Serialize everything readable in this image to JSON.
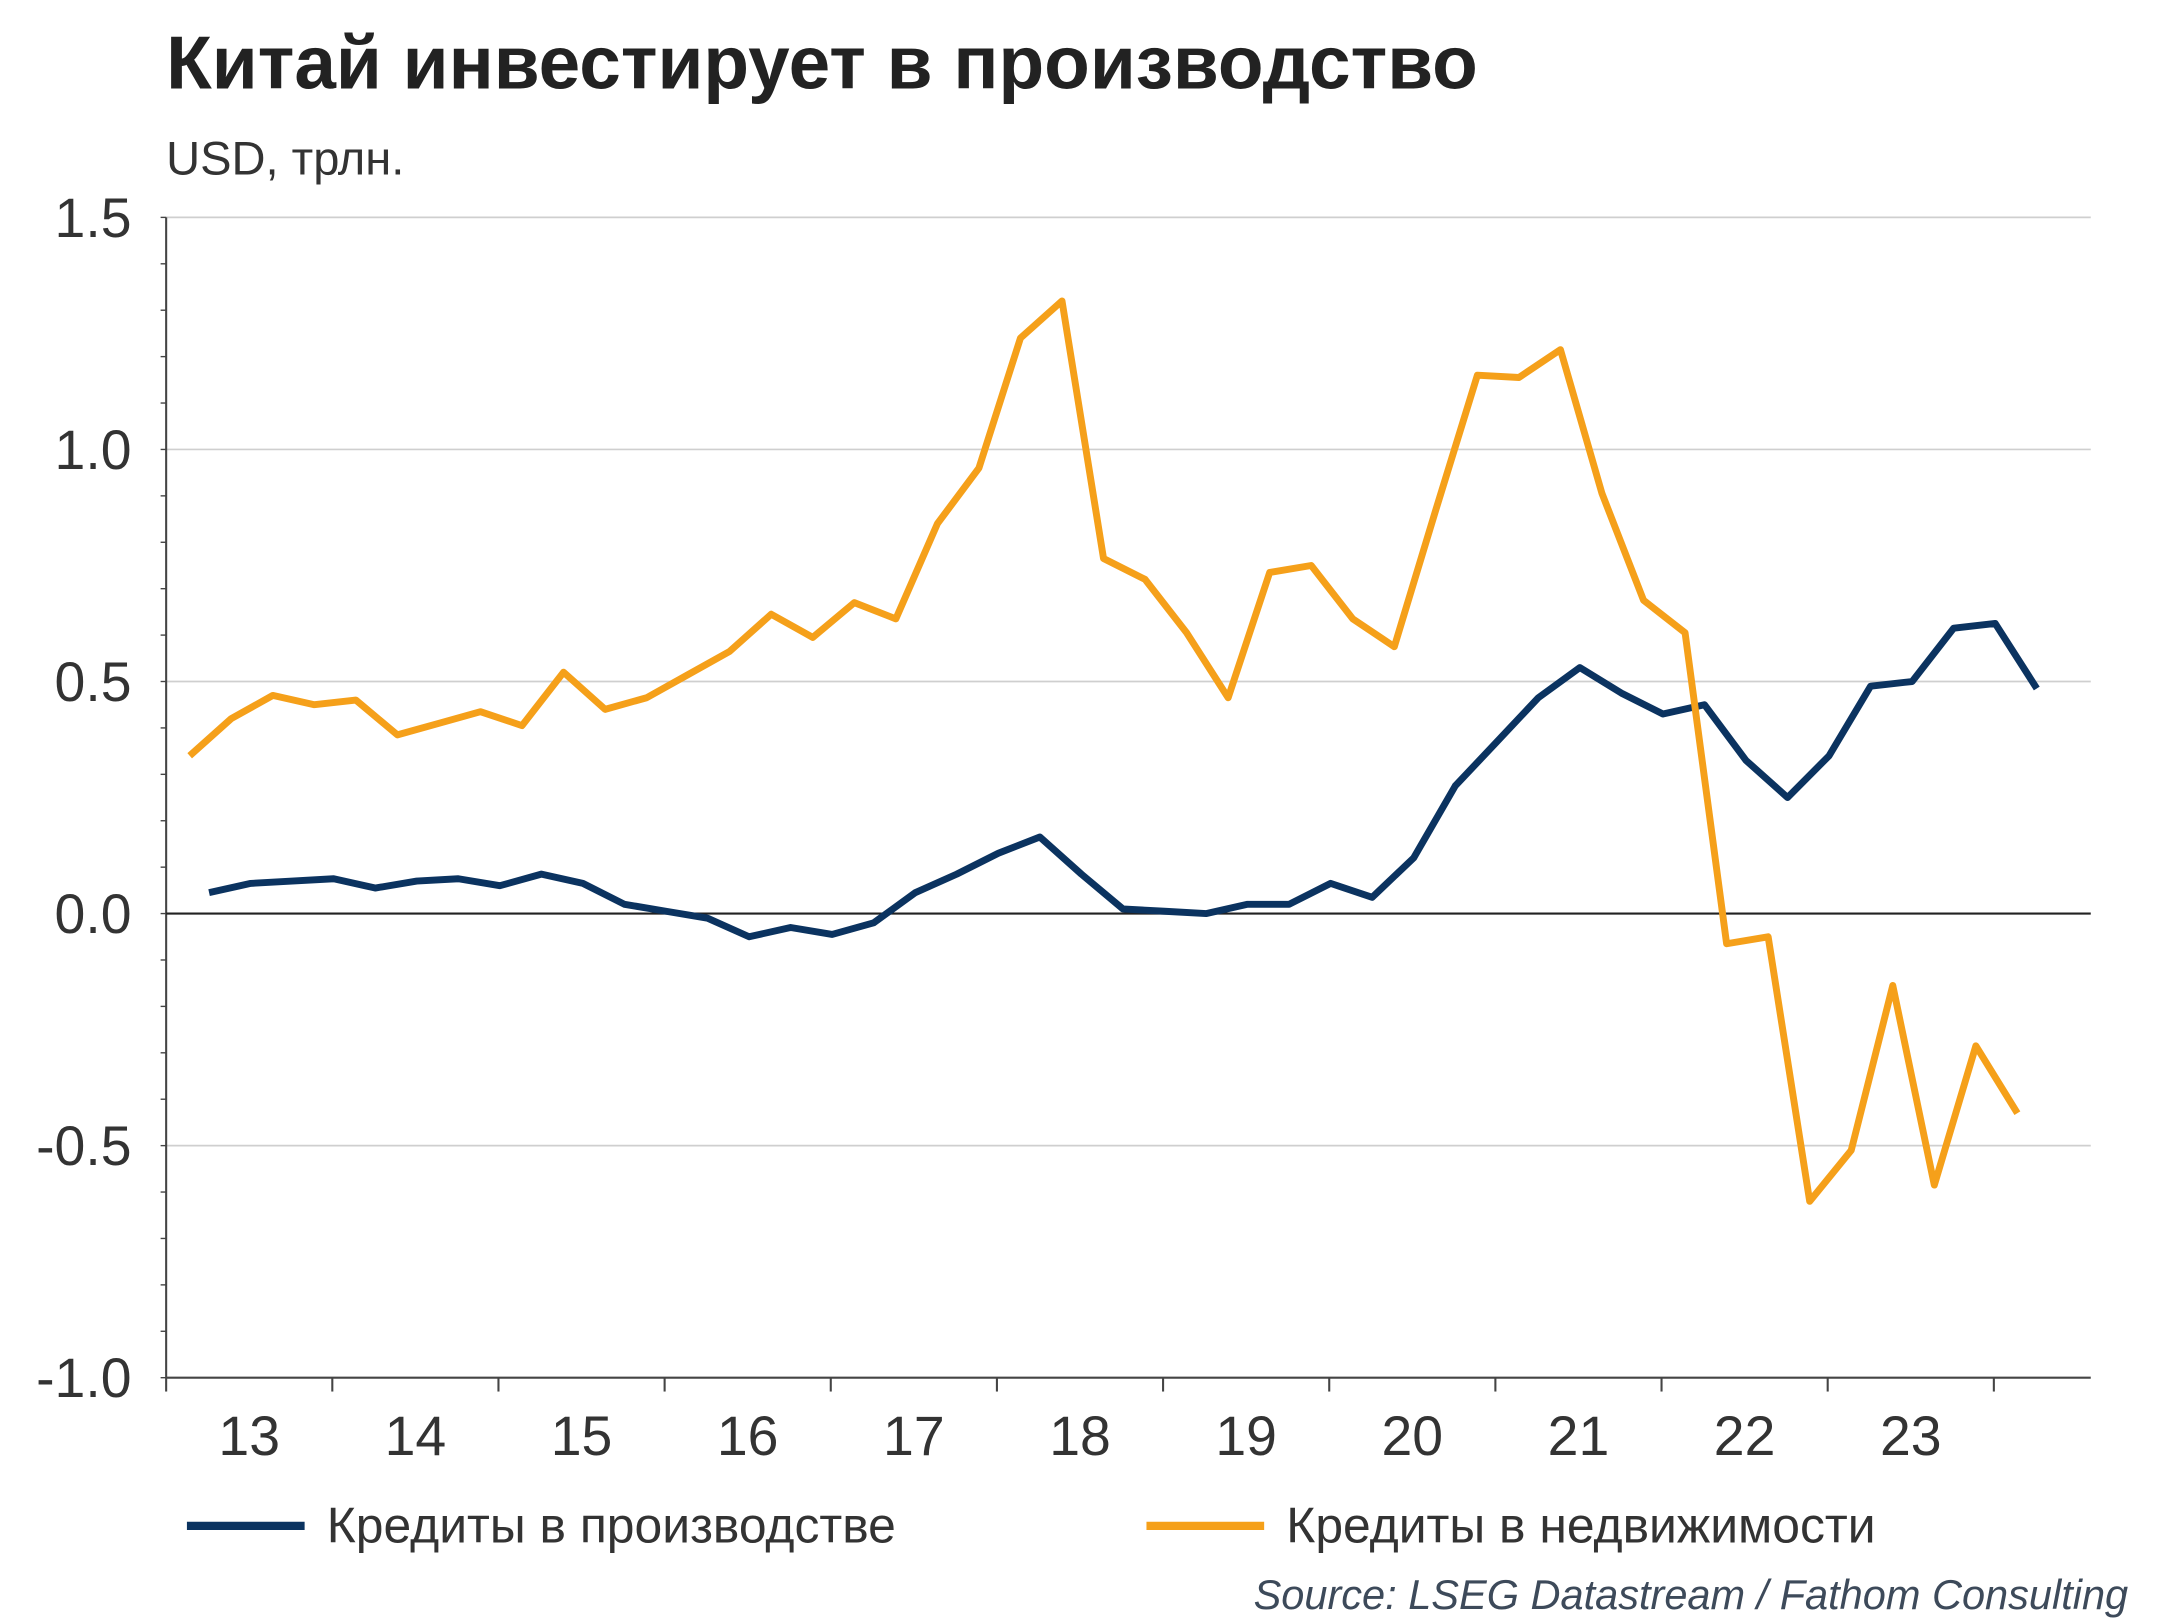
{
  "chart_data": {
    "type": "line",
    "title": "Китай инвестирует в производство",
    "subtitle": "USD, трлн.",
    "source": "Source: LSEG Datastream / Fathom Consulting",
    "ylim": [
      -1.0,
      1.5
    ],
    "yticks": [
      "1.5",
      "1.0",
      "0.5",
      "0.0",
      "-0.5",
      "-1.0"
    ],
    "ytick_values": [
      1.5,
      1.0,
      0.5,
      0.0,
      -0.5,
      -1.0
    ],
    "xtick_labels": [
      "13",
      "14",
      "15",
      "16",
      "17",
      "18",
      "19",
      "20",
      "21",
      "22",
      "23"
    ],
    "x_frequency": "quarterly",
    "x_start": "2013Q1",
    "x_end": "2024Q1",
    "grid": "horizontal",
    "legend_placement": "bottom",
    "series": [
      {
        "name": "Кредиты в производстве",
        "color": "#0b3360",
        "values": [
          0.045,
          0.065,
          0.07,
          0.075,
          0.055,
          0.07,
          0.075,
          0.06,
          0.085,
          0.065,
          0.02,
          0.005,
          -0.01,
          -0.05,
          -0.03,
          -0.045,
          -0.02,
          0.045,
          0.085,
          0.13,
          0.165,
          0.085,
          0.01,
          0.005,
          0.0,
          0.02,
          0.02,
          0.065,
          0.035,
          0.12,
          0.275,
          0.37,
          0.465,
          0.53,
          0.475,
          0.43,
          0.45,
          0.33,
          0.25,
          0.34,
          0.49,
          0.5,
          0.615,
          0.625,
          0.485
        ]
      },
      {
        "name": "Кредиты в недвижимости",
        "color": "#f5a01a",
        "values": [
          0.34,
          0.42,
          0.47,
          0.45,
          0.46,
          0.385,
          0.41,
          0.435,
          0.405,
          0.52,
          0.44,
          0.465,
          0.515,
          0.565,
          0.645,
          0.595,
          0.67,
          0.635,
          0.84,
          0.96,
          1.24,
          1.32,
          0.765,
          0.72,
          0.605,
          0.465,
          0.735,
          0.75,
          0.635,
          0.575,
          0.87,
          1.16,
          1.155,
          1.215,
          0.905,
          0.675,
          0.605,
          -0.065,
          -0.05,
          -0.62,
          -0.51,
          -0.155,
          -0.585,
          -0.285,
          -0.43
        ]
      }
    ]
  }
}
